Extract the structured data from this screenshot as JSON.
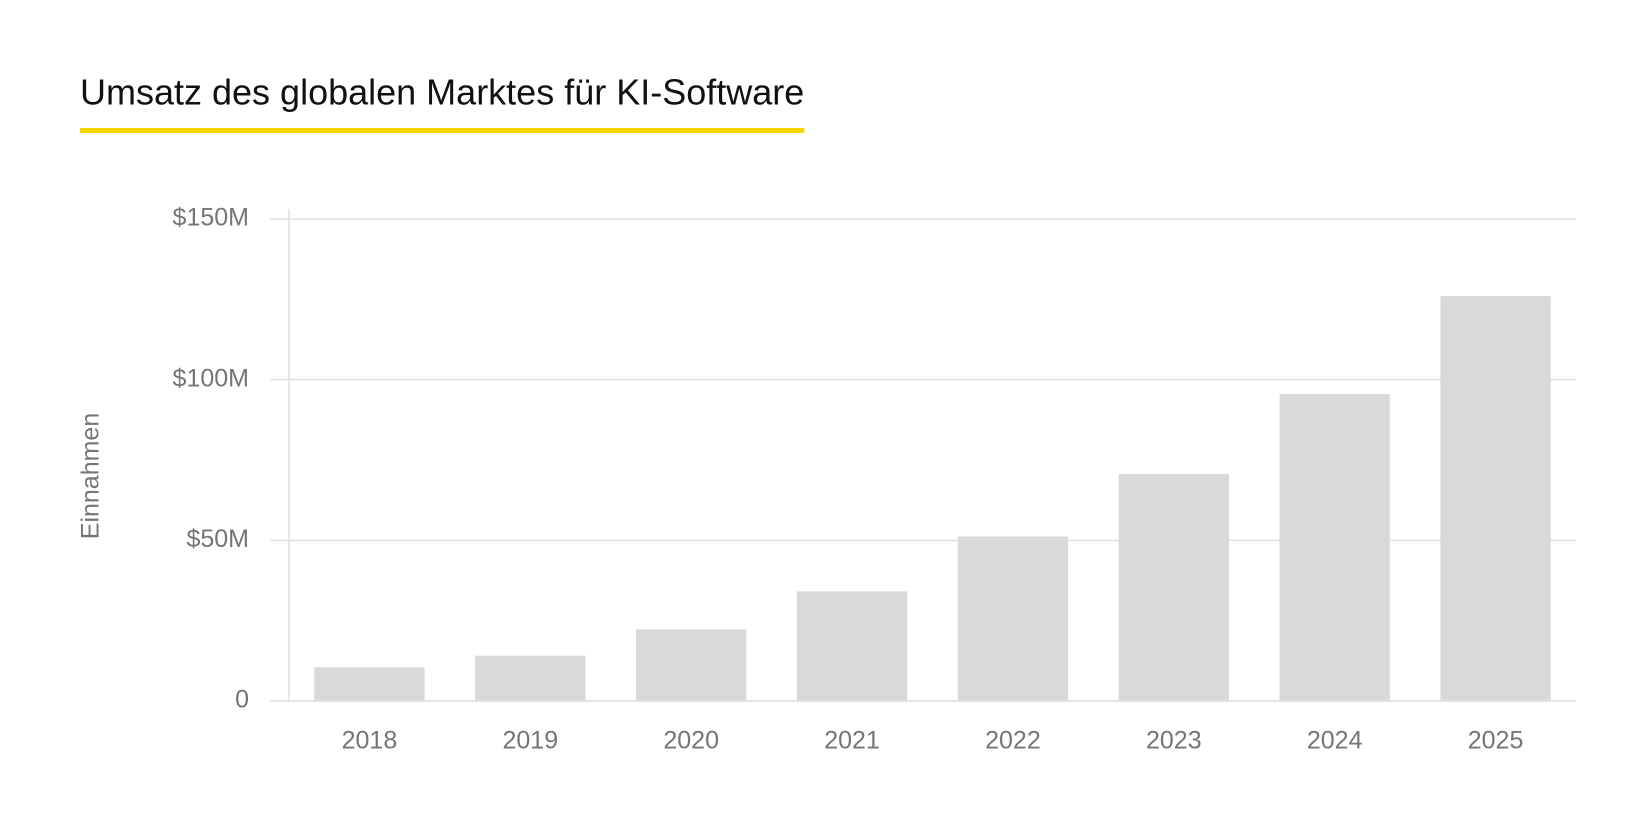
{
  "chart_data": {
    "type": "bar",
    "title": "Umsatz des globalen Marktes für KI-Software",
    "y_label": "Einnahmen",
    "categories": [
      "2018",
      "2019",
      "2020",
      "2021",
      "2022",
      "2023",
      "2024",
      "2025"
    ],
    "values": [
      10.5,
      14.1,
      22.3,
      34.1,
      51.2,
      70.6,
      95.5,
      126.0
    ],
    "color": "#d9d9d9",
    "ylim": [
      0,
      150
    ],
    "yticks": [
      0,
      {
        "value": 50,
        "label": "$50M"
      },
      {
        "value": 100,
        "label": "$100M"
      },
      {
        "value": 150,
        "label": "$150M"
      }
    ],
    "grid": true
  }
}
